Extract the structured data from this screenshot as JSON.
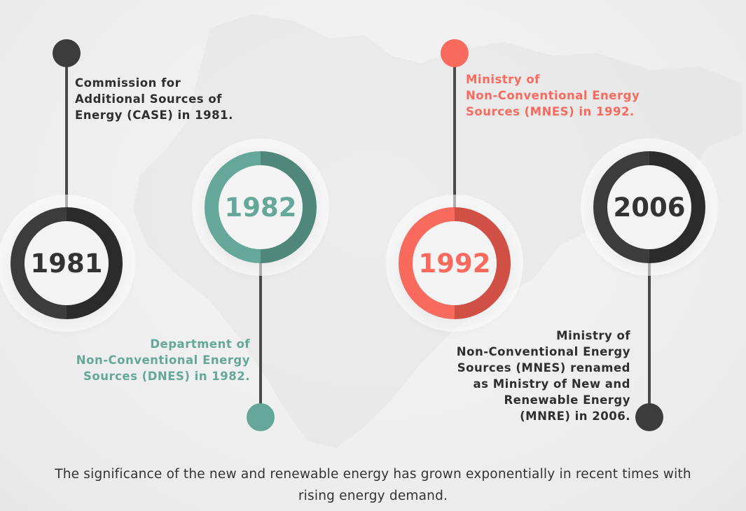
{
  "colors": {
    "dark": "#3d3c3c",
    "dark_shade": "#2c2b2b",
    "teal": "#65a89a",
    "teal_shade": "#4f877b",
    "coral": "#f86a5d",
    "coral_shade": "#d05046",
    "stem": "#4a4a48"
  },
  "milestones": [
    {
      "year": "1981",
      "text": "Commission for\nAdditional Sources of\nEnergy (CASE) in 1981.",
      "color": "dark"
    },
    {
      "year": "1982",
      "text": "Department of\nNon-Conventional Energy\nSources (DNES) in 1982.",
      "color": "teal"
    },
    {
      "year": "1992",
      "text": "Ministry of\nNon-Conventional Energy\nSources (MNES) in 1992.",
      "color": "coral"
    },
    {
      "year": "2006",
      "text": "Ministry of\nNon-Conventional Energy\nSources (MNES) renamed\nas Ministry of New and\nRenewable Energy\n(MNRE) in 2006.",
      "color": "dark"
    }
  ],
  "caption": "The significance of the new and renewable energy has grown exponentially in recent times with rising energy demand."
}
